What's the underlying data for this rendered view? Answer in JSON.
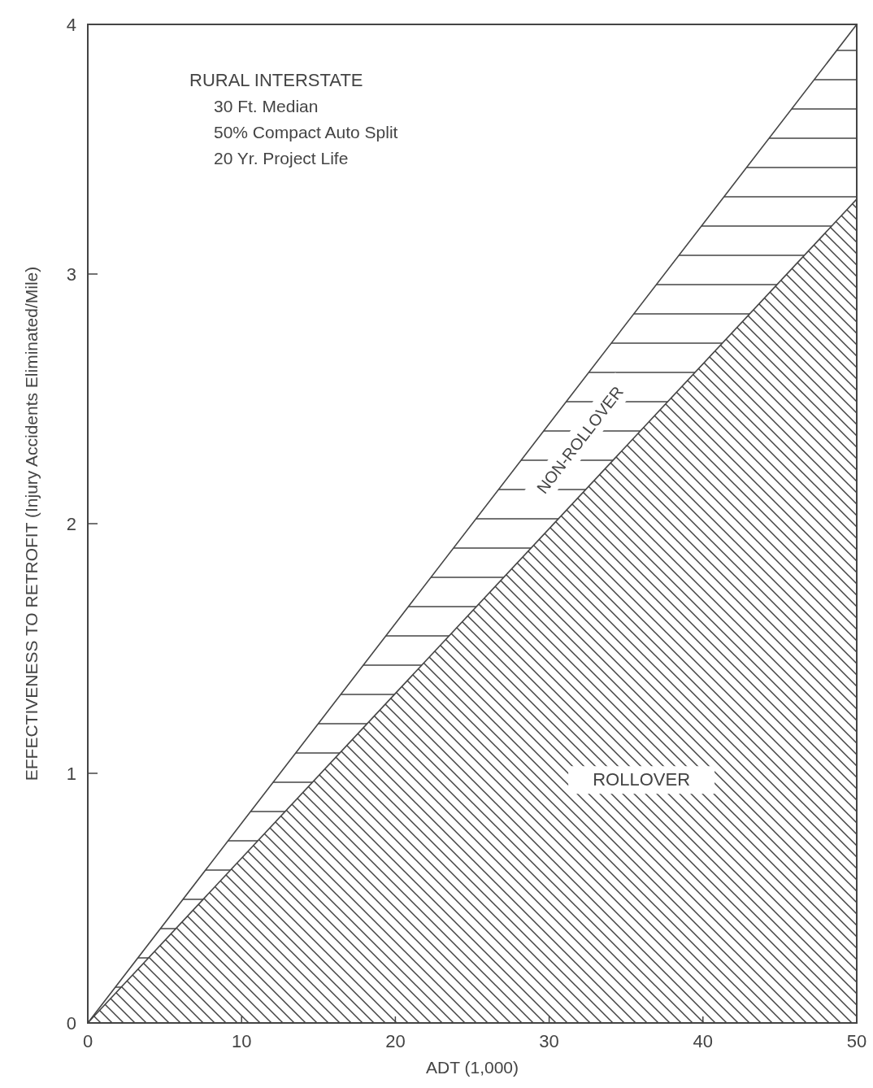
{
  "chart_data": {
    "type": "area",
    "stacked": true,
    "title": "RURAL INTERSTATE",
    "annotations": [
      "30 Ft. Median",
      "50% Compact Auto Split",
      "20 Yr. Project Life"
    ],
    "xlabel": "ADT (1,000)",
    "ylabel": "EFFECTIVENESS TO RETROFIT (Injury Accidents Eliminated/Mile)",
    "x": [
      0,
      50
    ],
    "series": [
      {
        "name": "ROLLOVER",
        "color": "#444444",
        "values": [
          0,
          3.3
        ]
      },
      {
        "name": "NON-ROLLOVER",
        "color": "#444444",
        "values": [
          0,
          0.7
        ]
      }
    ],
    "xlim": [
      0,
      50
    ],
    "xticks": [
      0,
      10,
      20,
      30,
      40,
      50
    ],
    "ylim": [
      0,
      4
    ],
    "yticks": [
      0,
      1,
      2,
      3,
      4
    ],
    "grid": false
  }
}
